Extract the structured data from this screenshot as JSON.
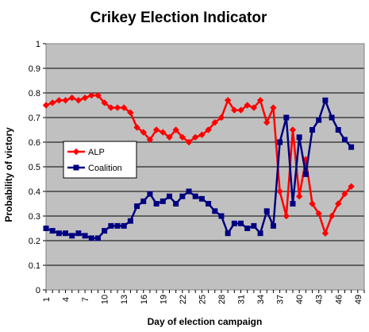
{
  "chart_data": {
    "type": "line",
    "title": "Crikey Election Indicator",
    "xlabel": "Day of election campaign",
    "ylabel": "Probability of victory",
    "xlim": [
      1,
      50
    ],
    "ylim": [
      0,
      1
    ],
    "x_ticks": [
      1,
      4,
      7,
      10,
      13,
      16,
      19,
      22,
      25,
      28,
      31,
      34,
      37,
      40,
      43,
      46,
      49
    ],
    "y_ticks": [
      0,
      0.1,
      0.2,
      0.3,
      0.4,
      0.5,
      0.6,
      0.7,
      0.8,
      0.9,
      1
    ],
    "y_tick_labels": [
      "0",
      "0.1",
      "0.2",
      "0.3",
      "0.4",
      "0.5",
      "0.6",
      "0.7",
      "0.8",
      "0.9",
      "1"
    ],
    "grid": "horizontal",
    "legend_position": "left-middle",
    "plot_background": "#c0c0c0",
    "series": [
      {
        "name": "ALP",
        "color": "#ff0000",
        "marker": "diamond",
        "x": [
          1,
          2,
          3,
          4,
          5,
          6,
          7,
          8,
          9,
          10,
          11,
          12,
          13,
          14,
          15,
          16,
          17,
          18,
          19,
          20,
          21,
          22,
          23,
          24,
          25,
          26,
          27,
          28,
          29,
          30,
          31,
          32,
          33,
          34,
          35,
          36,
          37,
          38,
          39,
          40,
          41,
          42,
          43,
          44,
          45,
          46,
          47,
          48
        ],
        "values": [
          0.75,
          0.76,
          0.77,
          0.77,
          0.78,
          0.77,
          0.78,
          0.79,
          0.79,
          0.76,
          0.74,
          0.74,
          0.74,
          0.72,
          0.66,
          0.64,
          0.61,
          0.65,
          0.64,
          0.62,
          0.65,
          0.62,
          0.6,
          0.62,
          0.63,
          0.65,
          0.68,
          0.7,
          0.77,
          0.73,
          0.73,
          0.75,
          0.74,
          0.77,
          0.68,
          0.74,
          0.4,
          0.3,
          0.65,
          0.38,
          0.53,
          0.35,
          0.31,
          0.23,
          0.3,
          0.35,
          0.39,
          0.42
        ]
      },
      {
        "name": "Coalition",
        "color": "#000080",
        "marker": "square",
        "x": [
          1,
          2,
          3,
          4,
          5,
          6,
          7,
          8,
          9,
          10,
          11,
          12,
          13,
          14,
          15,
          16,
          17,
          18,
          19,
          20,
          21,
          22,
          23,
          24,
          25,
          26,
          27,
          28,
          29,
          30,
          31,
          32,
          33,
          34,
          35,
          36,
          37,
          38,
          39,
          40,
          41,
          42,
          43,
          44,
          45,
          46,
          47,
          48
        ],
        "values": [
          0.25,
          0.24,
          0.23,
          0.23,
          0.22,
          0.23,
          0.22,
          0.21,
          0.21,
          0.24,
          0.26,
          0.26,
          0.26,
          0.28,
          0.34,
          0.36,
          0.39,
          0.35,
          0.36,
          0.38,
          0.35,
          0.38,
          0.4,
          0.38,
          0.37,
          0.35,
          0.32,
          0.3,
          0.23,
          0.27,
          0.27,
          0.25,
          0.26,
          0.23,
          0.32,
          0.26,
          0.6,
          0.7,
          0.35,
          0.62,
          0.47,
          0.65,
          0.69,
          0.77,
          0.7,
          0.65,
          0.61,
          0.58
        ]
      }
    ]
  }
}
